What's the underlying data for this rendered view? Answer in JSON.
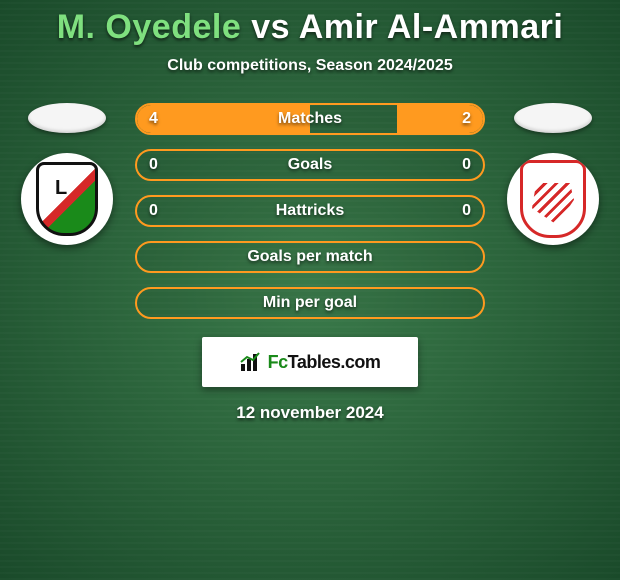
{
  "title": {
    "player1": "M. Oyedele",
    "vs": "vs",
    "player2": "Amir Al-Ammari",
    "player1_color": "#7fe07f",
    "vs_color": "#ffffff",
    "player2_color": "#ffffff",
    "fontsize": 34
  },
  "subtitle": "Club competitions, Season 2024/2025",
  "accent_color": "#ff9a1f",
  "background": {
    "inner": "#3a7a4a",
    "outer": "#1a4a2a"
  },
  "left_team": {
    "name": "legia",
    "flag_color": "#f5f5f5"
  },
  "right_team": {
    "name": "cracovia",
    "flag_color": "#f5f5f5"
  },
  "bars": [
    {
      "label": "Matches",
      "left": "4",
      "right": "2",
      "left_pct": 50,
      "right_pct": 25
    },
    {
      "label": "Goals",
      "left": "0",
      "right": "0",
      "left_pct": 0,
      "right_pct": 0
    },
    {
      "label": "Hattricks",
      "left": "0",
      "right": "0",
      "left_pct": 0,
      "right_pct": 0
    },
    {
      "label": "Goals per match",
      "left": "",
      "right": "",
      "left_pct": 0,
      "right_pct": 0
    },
    {
      "label": "Min per goal",
      "left": "",
      "right": "",
      "left_pct": 0,
      "right_pct": 0
    }
  ],
  "logo": {
    "brand_prefix": "Fc",
    "brand_suffix": "Tables.com"
  },
  "date": "12 november 2024"
}
